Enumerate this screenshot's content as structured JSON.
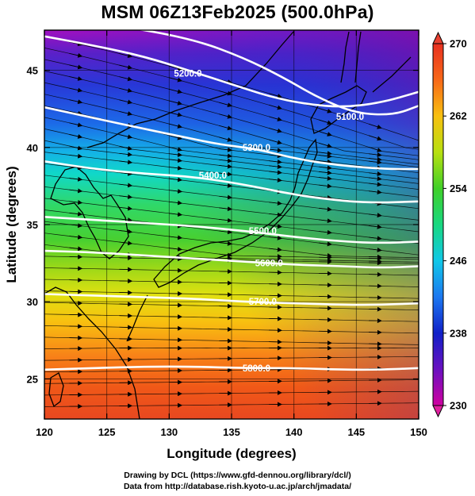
{
  "title": "MSM 06Z13Feb2025 (500.0hPa)",
  "credits": {
    "line1": "Drawing by DCL (https://www.gfd-dennou.org/library/dcl/)",
    "line2": "Data from http://database.rish.kyoto-u.ac.jp/arch/jmadata/"
  },
  "axes": {
    "xlabel": "Longitude (degrees)",
    "ylabel": "Latitude  (degrees)",
    "xlim": [
      120,
      150
    ],
    "ylim": [
      22.4,
      47.6
    ],
    "xticks": [
      "120",
      "125",
      "130",
      "135",
      "140",
      "145",
      "150"
    ],
    "yticks": [
      "25",
      "30",
      "35",
      "40",
      "45"
    ]
  },
  "colorbar": {
    "range": [
      230,
      270
    ],
    "ticks": [
      "230",
      "238",
      "246",
      "254",
      "262",
      "270"
    ]
  },
  "contours": [
    {
      "label": "5200.0",
      "value": 5200,
      "label_lon": 131.5,
      "label_lat": 44.8,
      "points": [
        [
          120,
          47.2
        ],
        [
          124,
          46.6
        ],
        [
          128,
          45.9
        ],
        [
          131.5,
          45.0
        ],
        [
          135,
          44.1
        ],
        [
          138,
          43.3
        ],
        [
          141,
          42.8
        ],
        [
          144,
          42.6
        ],
        [
          147,
          42.9
        ],
        [
          150,
          43.6
        ]
      ]
    },
    {
      "label": "5100.0",
      "value": 5100,
      "label_lon": 144.5,
      "label_lat": 42.0,
      "points": [
        [
          120,
          48.6
        ],
        [
          126,
          47.9
        ],
        [
          132,
          47.0
        ],
        [
          136,
          45.8
        ],
        [
          139,
          44.6
        ],
        [
          142,
          43.2
        ],
        [
          145,
          42.2
        ],
        [
          148,
          42.1
        ],
        [
          150,
          42.7
        ]
      ]
    },
    {
      "label": "5300.0",
      "value": 5300,
      "label_lon": 137.0,
      "label_lat": 40.0,
      "points": [
        [
          120,
          42.6
        ],
        [
          124,
          41.9
        ],
        [
          128,
          41.2
        ],
        [
          131,
          40.7
        ],
        [
          134,
          40.2
        ],
        [
          137,
          39.9
        ],
        [
          140,
          39.3
        ],
        [
          143,
          38.9
        ],
        [
          147,
          38.6
        ],
        [
          150,
          38.6
        ]
      ]
    },
    {
      "label": "5400.0",
      "value": 5400,
      "label_lon": 133.5,
      "label_lat": 38.2,
      "points": [
        [
          120,
          39.1
        ],
        [
          124,
          38.6
        ],
        [
          128,
          38.3
        ],
        [
          132,
          38.1
        ],
        [
          136,
          37.6
        ],
        [
          139,
          37.1
        ],
        [
          142,
          36.7
        ],
        [
          146,
          36.4
        ],
        [
          150,
          36.5
        ]
      ]
    },
    {
      "label": "5500.0",
      "value": 5500,
      "label_lon": 137.5,
      "label_lat": 34.6,
      "points": [
        [
          120,
          35.5
        ],
        [
          124,
          35.3
        ],
        [
          128,
          35.1
        ],
        [
          132,
          34.9
        ],
        [
          136,
          34.6
        ],
        [
          140,
          34.2
        ],
        [
          144,
          33.9
        ],
        [
          147,
          33.8
        ],
        [
          150,
          33.9
        ]
      ]
    },
    {
      "label": "5600.0",
      "value": 5600,
      "label_lon": 138.0,
      "label_lat": 32.5,
      "points": [
        [
          120,
          33.3
        ],
        [
          124,
          33.2
        ],
        [
          128,
          33.0
        ],
        [
          132,
          32.8
        ],
        [
          136,
          32.6
        ],
        [
          140,
          32.4
        ],
        [
          144,
          32.3
        ],
        [
          147,
          32.2
        ],
        [
          150,
          32.3
        ]
      ]
    },
    {
      "label": "5700.0",
      "value": 5700,
      "label_lon": 137.5,
      "label_lat": 30.0,
      "points": [
        [
          120,
          30.5
        ],
        [
          124,
          30.4
        ],
        [
          128,
          30.3
        ],
        [
          132,
          30.2
        ],
        [
          136,
          30.0
        ],
        [
          140,
          29.9
        ],
        [
          144,
          29.8
        ],
        [
          147,
          29.8
        ],
        [
          150,
          29.9
        ]
      ]
    },
    {
      "label": "5800.0",
      "value": 5800,
      "label_lon": 137.0,
      "label_lat": 25.7,
      "points": [
        [
          120,
          25.6
        ],
        [
          124,
          25.7
        ],
        [
          128,
          25.8
        ],
        [
          132,
          25.8
        ],
        [
          136,
          25.7
        ],
        [
          140,
          25.7
        ],
        [
          144,
          25.6
        ],
        [
          147,
          25.6
        ],
        [
          150,
          25.7
        ]
      ]
    }
  ]
}
